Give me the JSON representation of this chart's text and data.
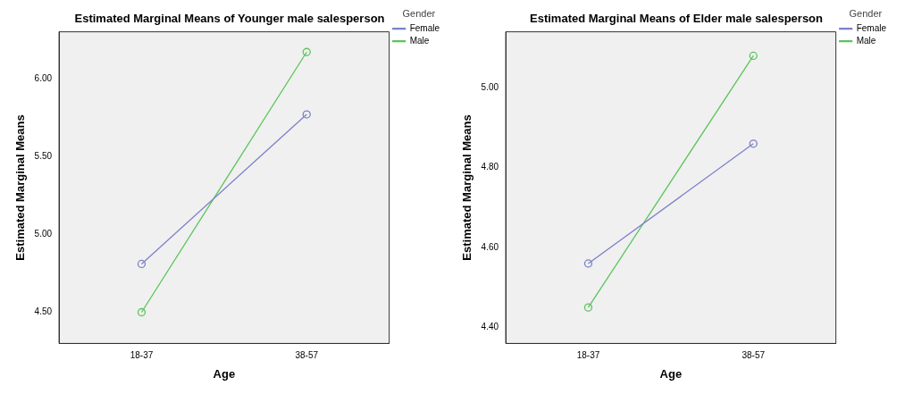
{
  "chart_data": [
    {
      "type": "line",
      "title": "Estimated Marginal Means of Younger male salesperson",
      "xlabel": "Age",
      "ylabel": "Estimated Marginal Means",
      "legend_title": "Gender",
      "legend": "top right",
      "marker": "circle",
      "grid": false,
      "categories": [
        "18-37",
        "38-57"
      ],
      "ylim": [
        4.3,
        6.3
      ],
      "yticks": [
        {
          "value": 4.5,
          "label": "4.50"
        },
        {
          "value": 5,
          "label": "5.00"
        },
        {
          "value": 5.5,
          "label": "5.50"
        },
        {
          "value": 6,
          "label": "6.00"
        }
      ],
      "series": [
        {
          "name": "Female",
          "color": "#7c80c8",
          "values": [
            4.81,
            5.77
          ]
        },
        {
          "name": "Male",
          "color": "#5cc45c",
          "values": [
            4.5,
            6.17
          ]
        }
      ]
    },
    {
      "type": "line",
      "title": "Estimated Marginal Means of Elder male salesperson",
      "xlabel": "Age",
      "ylabel": "Estimated Marginal Means",
      "legend_title": "Gender",
      "legend": "top right",
      "marker": "circle",
      "grid": false,
      "categories": [
        "18-37",
        "38-57"
      ],
      "ylim": [
        4.36,
        5.14
      ],
      "yticks": [
        {
          "value": 4.4,
          "label": "4.40"
        },
        {
          "value": 4.6,
          "label": "4.60"
        },
        {
          "value": 4.8,
          "label": "4.80"
        },
        {
          "value": 5,
          "label": "5.00"
        }
      ],
      "series": [
        {
          "name": "Female",
          "color": "#7c80c8",
          "values": [
            4.56,
            4.86
          ]
        },
        {
          "name": "Male",
          "color": "#5cc45c",
          "values": [
            4.45,
            5.08
          ]
        }
      ]
    }
  ]
}
